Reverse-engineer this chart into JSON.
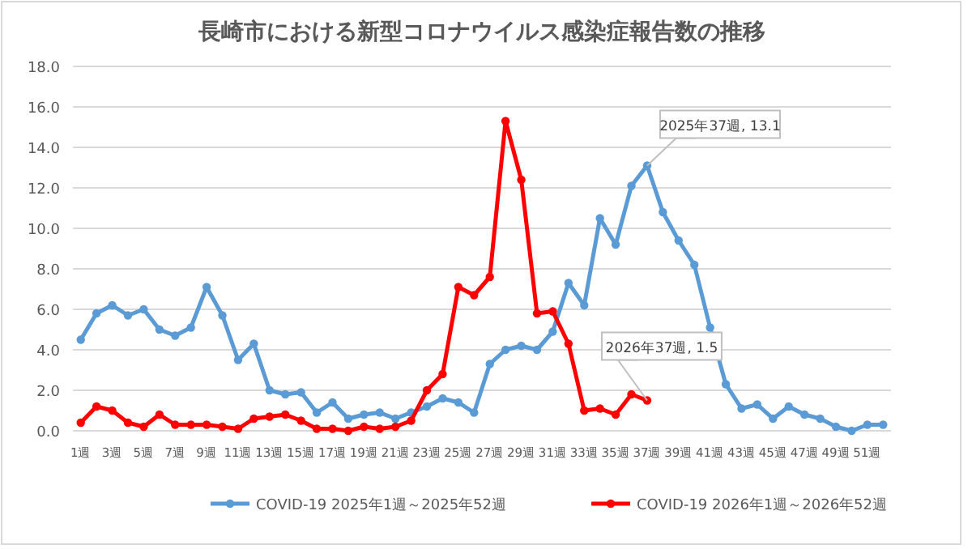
{
  "chart_data": {
    "type": "line",
    "title": "長崎市における新型コロナウイルス感染症報告数の推移",
    "categories": [
      "1週",
      null,
      "3週",
      null,
      "5週",
      null,
      "7週",
      null,
      "9週",
      null,
      "11週",
      null,
      "13週",
      null,
      "15週",
      null,
      "17週",
      null,
      "19週",
      null,
      "21週",
      null,
      "23週",
      null,
      "25週",
      null,
      "27週",
      null,
      "29週",
      null,
      "31週",
      null,
      "33週",
      null,
      "35週",
      null,
      "37週",
      null,
      "39週",
      null,
      "41週",
      null,
      "43週",
      null,
      "45週",
      null,
      "47週",
      null,
      "49週",
      null,
      "51週",
      null
    ],
    "series": [
      {
        "name": "COVID-19 2025年1週～2025年52週",
        "color": "#5b9bd5",
        "values": [
          4.5,
          5.8,
          6.2,
          5.7,
          6.0,
          5.0,
          4.7,
          5.1,
          7.1,
          5.7,
          3.5,
          4.3,
          2.0,
          1.8,
          1.9,
          0.9,
          1.4,
          0.6,
          0.8,
          0.9,
          0.6,
          0.9,
          1.2,
          1.6,
          1.4,
          0.9,
          3.3,
          4.0,
          4.2,
          4.0,
          4.9,
          7.3,
          6.2,
          10.5,
          9.2,
          12.1,
          13.1,
          10.8,
          9.4,
          8.2,
          5.1,
          2.3,
          1.1,
          1.3,
          0.6,
          1.2,
          0.8,
          0.6,
          0.2,
          0.0,
          0.3,
          0.3
        ]
      },
      {
        "name": "COVID-19 2026年1週～2026年52週",
        "color": "#ff0000",
        "values": [
          0.4,
          1.2,
          1.0,
          0.4,
          0.2,
          0.8,
          0.3,
          0.3,
          0.3,
          0.2,
          0.1,
          0.6,
          0.7,
          0.8,
          0.5,
          0.1,
          0.1,
          0.0,
          0.2,
          0.1,
          0.2,
          0.5,
          2.0,
          2.8,
          7.1,
          6.7,
          7.6,
          15.3,
          12.4,
          5.8,
          5.9,
          4.3,
          1.0,
          1.1,
          0.8,
          1.8,
          1.5,
          null,
          null,
          null,
          null,
          null,
          null,
          null,
          null,
          null,
          null,
          null,
          null,
          null,
          null,
          null
        ]
      }
    ],
    "ylim": [
      0,
      18
    ],
    "yticks": [
      {
        "value": 0,
        "label": "0.0"
      },
      {
        "value": 2,
        "label": "2.0"
      },
      {
        "value": 4,
        "label": "4.0"
      },
      {
        "value": 6,
        "label": "6.0"
      },
      {
        "value": 8,
        "label": "8.0"
      },
      {
        "value": 10,
        "label": "10.0"
      },
      {
        "value": 12,
        "label": "12.0"
      },
      {
        "value": 14,
        "label": "14.0"
      },
      {
        "value": 16,
        "label": "16.0"
      },
      {
        "value": 18,
        "label": "18.0"
      }
    ],
    "annotations": [
      {
        "text": "2025年37週, 13.1",
        "x": "37週",
        "y": 13.1
      },
      {
        "text": "2026年37週, 1.5",
        "x": "37週",
        "y": 1.5
      }
    ],
    "grid": "y",
    "legend": "bottom",
    "marker": "circle",
    "line_style": "solid"
  }
}
